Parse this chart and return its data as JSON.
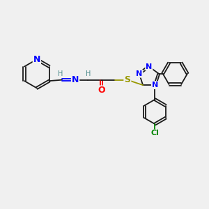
{
  "bg_color": "#f0f0f0",
  "bond_color": "#1a1a1a",
  "N_color": "#0000ff",
  "O_color": "#ff0000",
  "S_color": "#999900",
  "Cl_color": "#008800",
  "H_color": "#4a8a8a",
  "font_size": 8,
  "figsize": [
    3.0,
    3.0
  ],
  "dpi": 100,
  "xlim": [
    0,
    10
  ],
  "ylim": [
    0,
    10
  ]
}
